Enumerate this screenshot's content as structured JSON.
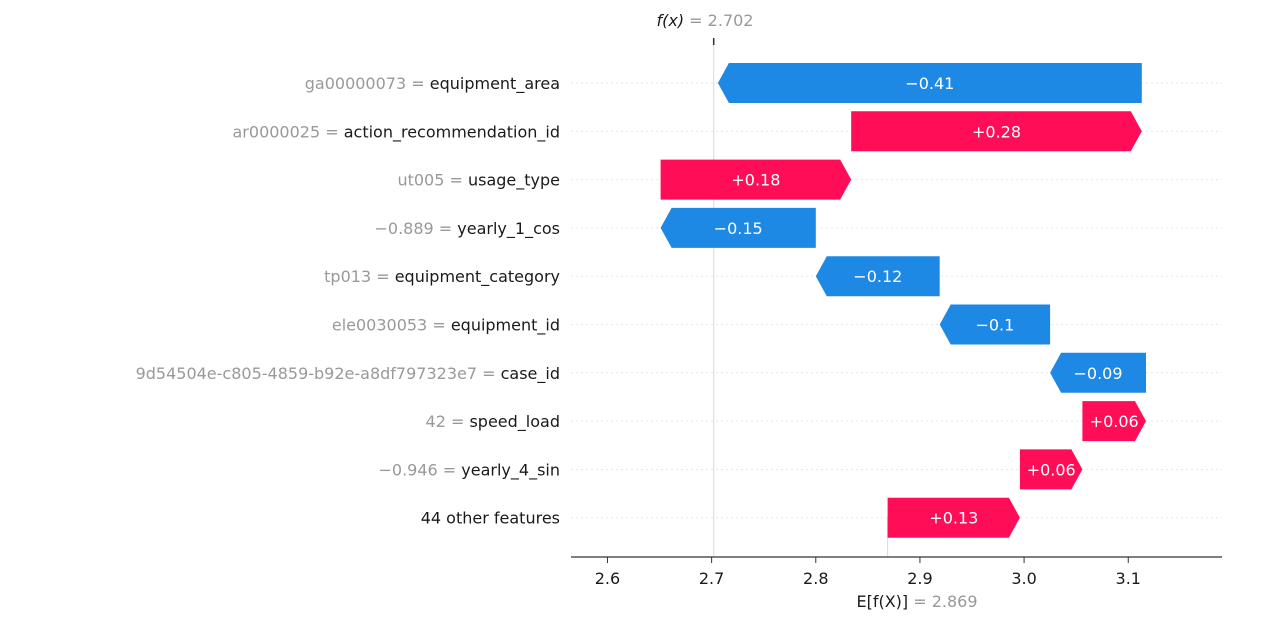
{
  "chart_data": {
    "type": "waterfall",
    "title": "",
    "fx_label": "f(x)",
    "fx_eq": " = ",
    "fx_value": "2.702",
    "ex_label": "E[f(X)]",
    "ex_eq": " = ",
    "ex_value": "2.869",
    "base_value": 2.869,
    "final_value": 2.702,
    "xlim": [
      2.565,
      3.19
    ],
    "xticks": [
      2.6,
      2.7,
      2.8,
      2.9,
      3.0,
      3.1
    ],
    "xtick_labels": [
      "2.6",
      "2.7",
      "2.8",
      "2.9",
      "3.0",
      "3.1"
    ],
    "features": [
      {
        "value": "ga00000073",
        "name": "equipment_area",
        "contribution": -0.407,
        "label": "−0.41"
      },
      {
        "value": "ar0000025",
        "name": "action_recommendation_id",
        "contribution": 0.279,
        "label": "+0.28"
      },
      {
        "value": "ut005",
        "name": "usage_type",
        "contribution": 0.183,
        "label": "+0.18"
      },
      {
        "value": "−0.889",
        "name": "yearly_1_cos",
        "contribution": -0.149,
        "label": "−0.15"
      },
      {
        "value": "tp013",
        "name": "equipment_category",
        "contribution": -0.119,
        "label": "−0.12"
      },
      {
        "value": "ele0030053",
        "name": "equipment_id",
        "contribution": -0.106,
        "label": "−0.1"
      },
      {
        "value": "9d54504e-c805-4859-b92e-a8df797323e7",
        "name": "case_id",
        "contribution": -0.092,
        "label": "−0.09"
      },
      {
        "value": "42",
        "name": "speed_load",
        "contribution": 0.061,
        "label": "+0.06"
      },
      {
        "value": "−0.946",
        "name": "yearly_4_sin",
        "contribution": 0.06,
        "label": "+0.06"
      },
      {
        "value": "",
        "name": "44 other features",
        "contribution": 0.127,
        "label": "+0.13"
      }
    ],
    "colors": {
      "positive": "#ff0d57",
      "negative": "#1e88e5",
      "grey_text": "#999999",
      "dark_text": "#1a1a1a",
      "grid": "#e6e6e6",
      "axis": "#333333"
    }
  }
}
